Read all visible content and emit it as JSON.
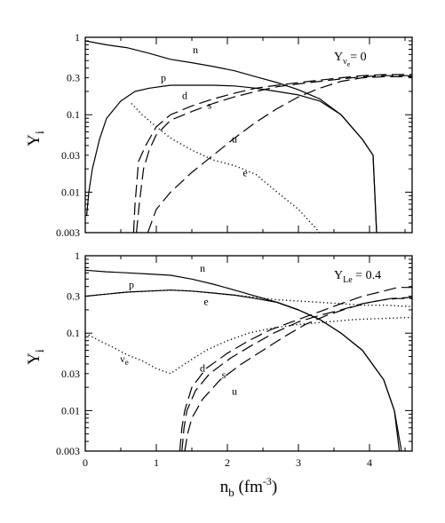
{
  "chart_data": [
    {
      "type": "line",
      "panel": "top",
      "scale": {
        "x": "linear",
        "y": "log"
      },
      "xlim": [
        0,
        4.6
      ],
      "ylim": [
        0.003,
        1
      ],
      "y_ticks": [
        {
          "value": 1,
          "label": "1"
        },
        {
          "value": 0.3,
          "label": "0.3"
        },
        {
          "value": 0.1,
          "label": "0.1"
        },
        {
          "value": 0.03,
          "label": "0.03"
        },
        {
          "value": 0.01,
          "label": "0.01"
        },
        {
          "value": 0.003,
          "label": "0.003"
        }
      ],
      "ylabel": {
        "main": "Y",
        "sub": "i"
      },
      "annotation": {
        "main": "Y",
        "sub": "ν",
        "subsub": "e",
        "rest": "= 0"
      },
      "series": [
        {
          "name": "n",
          "color": "#000000",
          "dash": "solid",
          "x": [
            0,
            0.3,
            0.6,
            0.9,
            1.2,
            1.5,
            1.8,
            2.1,
            2.4,
            2.7,
            3.0,
            3.3,
            3.6,
            3.9,
            4.05,
            4.1
          ],
          "y": [
            0.9,
            0.8,
            0.73,
            0.62,
            0.52,
            0.47,
            0.42,
            0.37,
            0.31,
            0.26,
            0.21,
            0.16,
            0.1,
            0.048,
            0.03,
            0.003
          ]
        },
        {
          "name": "p",
          "color": "#000000",
          "dash": "solid",
          "x": [
            0.02,
            0.05,
            0.1,
            0.2,
            0.3,
            0.5,
            0.7,
            0.9,
            1.2,
            1.5,
            1.8,
            2.1,
            2.4,
            2.7,
            3.0,
            3.3,
            3.6,
            3.9,
            4.05,
            4.1
          ],
          "y": [
            0.005,
            0.01,
            0.02,
            0.048,
            0.09,
            0.15,
            0.2,
            0.22,
            0.24,
            0.24,
            0.24,
            0.235,
            0.22,
            0.2,
            0.18,
            0.15,
            0.1,
            0.048,
            0.03,
            0.003
          ]
        },
        {
          "name": "e",
          "color": "#000000",
          "dash": "dotted",
          "x": [
            0.65,
            0.8,
            1.0,
            1.2,
            1.5,
            1.8,
            2.1,
            2.4,
            2.7,
            3.0,
            3.3
          ],
          "y": [
            0.14,
            0.1,
            0.07,
            0.05,
            0.035,
            0.026,
            0.022,
            0.017,
            0.01,
            0.006,
            0.003
          ]
        },
        {
          "name": "d",
          "color": "#000000",
          "dash": "dashed",
          "x": [
            0.68,
            0.7,
            0.75,
            0.85,
            1.0,
            1.2,
            1.5,
            1.8,
            2.1,
            2.4,
            2.7,
            3.0,
            3.3,
            3.6,
            3.9,
            4.2,
            4.6
          ],
          "y": [
            0.003,
            0.007,
            0.025,
            0.04,
            0.07,
            0.1,
            0.13,
            0.16,
            0.19,
            0.22,
            0.24,
            0.26,
            0.28,
            0.3,
            0.32,
            0.33,
            0.33
          ]
        },
        {
          "name": "s",
          "color": "#000000",
          "dash": "dashed",
          "x": [
            0.72,
            0.76,
            0.82,
            0.9,
            1.0,
            1.2,
            1.5,
            1.8,
            2.1,
            2.4,
            2.7,
            3.0,
            3.3,
            3.6,
            3.9,
            4.2,
            4.6
          ],
          "y": [
            0.003,
            0.007,
            0.02,
            0.035,
            0.055,
            0.085,
            0.11,
            0.14,
            0.17,
            0.2,
            0.23,
            0.25,
            0.27,
            0.29,
            0.31,
            0.32,
            0.32
          ]
        },
        {
          "name": "u",
          "color": "#000000",
          "dash": "dashed",
          "x": [
            0.88,
            1.0,
            1.2,
            1.5,
            1.8,
            2.1,
            2.4,
            2.7,
            3.0,
            3.3,
            3.6,
            3.9,
            4.2,
            4.6
          ],
          "y": [
            0.003,
            0.006,
            0.01,
            0.018,
            0.03,
            0.05,
            0.08,
            0.12,
            0.17,
            0.22,
            0.27,
            0.3,
            0.31,
            0.31
          ]
        }
      ],
      "curve_labels": [
        {
          "text": "n",
          "x": 1.55,
          "y": 0.62
        },
        {
          "text": "p",
          "x": 1.1,
          "y": 0.27
        },
        {
          "text": "d",
          "x": 1.4,
          "y": 0.16
        },
        {
          "text": "s",
          "x": 1.75,
          "y": 0.12
        },
        {
          "text": "u",
          "x": 2.1,
          "y": 0.044
        },
        {
          "text": "e",
          "x": 2.25,
          "y": 0.016
        }
      ]
    },
    {
      "type": "line",
      "panel": "bottom",
      "scale": {
        "x": "linear",
        "y": "log"
      },
      "xlim": [
        0,
        4.6
      ],
      "ylim": [
        0.003,
        1
      ],
      "x_ticks": [
        {
          "value": 0,
          "label": "0"
        },
        {
          "value": 1,
          "label": "1"
        },
        {
          "value": 2,
          "label": "2"
        },
        {
          "value": 3,
          "label": "3"
        },
        {
          "value": 4,
          "label": "4"
        }
      ],
      "y_ticks": [
        {
          "value": 1,
          "label": "1"
        },
        {
          "value": 0.3,
          "label": "0.3"
        },
        {
          "value": 0.1,
          "label": "0.1"
        },
        {
          "value": 0.03,
          "label": "0.03"
        },
        {
          "value": 0.01,
          "label": "0.01"
        },
        {
          "value": 0.003,
          "label": "0.003"
        }
      ],
      "xlabel": {
        "main": "n",
        "sub": "b",
        "rest": " (fm",
        "sup": "-3",
        "close": ")"
      },
      "ylabel": {
        "main": "Y",
        "sub": "i"
      },
      "annotation": {
        "main": "Y",
        "sub": "Le",
        "rest": " = 0.4"
      },
      "series": [
        {
          "name": "n",
          "color": "#000000",
          "dash": "solid",
          "x": [
            0,
            0.3,
            0.6,
            0.9,
            1.2,
            1.5,
            1.8,
            2.1,
            2.4,
            2.7,
            3.0,
            3.3,
            3.6,
            3.9,
            4.2,
            4.35,
            4.45
          ],
          "y": [
            0.65,
            0.62,
            0.6,
            0.58,
            0.56,
            0.5,
            0.43,
            0.36,
            0.3,
            0.25,
            0.2,
            0.15,
            0.1,
            0.06,
            0.025,
            0.01,
            0.003
          ]
        },
        {
          "name": "p",
          "color": "#000000",
          "dash": "solid",
          "x": [
            0,
            0.3,
            0.6,
            0.9,
            1.2,
            1.5,
            1.8,
            2.1,
            2.4,
            2.7,
            3.0,
            3.3,
            3.6,
            3.9,
            4.2,
            4.35,
            4.42
          ],
          "y": [
            0.3,
            0.32,
            0.34,
            0.35,
            0.36,
            0.35,
            0.33,
            0.31,
            0.28,
            0.25,
            0.2,
            0.15,
            0.1,
            0.06,
            0.025,
            0.01,
            0.003
          ]
        },
        {
          "name": "e",
          "color": "#000000",
          "dash": "dotted",
          "x": [
            0,
            0.3,
            0.6,
            0.9,
            1.2,
            1.5,
            1.8,
            2.1,
            2.4,
            2.7,
            3.0,
            3.3,
            3.6,
            3.9,
            4.2,
            4.6
          ],
          "y": [
            0.3,
            0.32,
            0.34,
            0.35,
            0.36,
            0.35,
            0.33,
            0.31,
            0.29,
            0.27,
            0.26,
            0.25,
            0.24,
            0.23,
            0.23,
            0.22
          ]
        },
        {
          "name": "νe",
          "color": "#000000",
          "dash": "dotted",
          "x": [
            0,
            0.2,
            0.4,
            0.6,
            0.8,
            1.0,
            1.2,
            1.4,
            1.7,
            2.0,
            2.3,
            2.6,
            3.0,
            3.4,
            3.8,
            4.2,
            4.6
          ],
          "y": [
            0.1,
            0.08,
            0.065,
            0.052,
            0.044,
            0.035,
            0.03,
            0.04,
            0.06,
            0.08,
            0.1,
            0.115,
            0.13,
            0.14,
            0.15,
            0.155,
            0.16
          ]
        },
        {
          "name": "d",
          "color": "#000000",
          "dash": "dashed",
          "x": [
            1.33,
            1.36,
            1.4,
            1.5,
            1.7,
            2.0,
            2.3,
            2.6,
            3.0,
            3.3,
            3.6,
            3.9,
            4.2,
            4.4,
            4.6
          ],
          "y": [
            0.003,
            0.006,
            0.01,
            0.02,
            0.035,
            0.055,
            0.08,
            0.11,
            0.15,
            0.19,
            0.24,
            0.3,
            0.35,
            0.39,
            0.39
          ]
        },
        {
          "name": "s",
          "color": "#000000",
          "dash": "dashed",
          "x": [
            1.36,
            1.39,
            1.43,
            1.55,
            1.75,
            2.05,
            2.35,
            2.65,
            3.0,
            3.3,
            3.6,
            3.9,
            4.2,
            4.4,
            4.6
          ],
          "y": [
            0.003,
            0.006,
            0.01,
            0.018,
            0.03,
            0.048,
            0.07,
            0.1,
            0.14,
            0.17,
            0.2,
            0.24,
            0.27,
            0.28,
            0.28
          ]
        },
        {
          "name": "u",
          "color": "#000000",
          "dash": "dashed",
          "x": [
            1.4,
            1.44,
            1.5,
            1.65,
            1.9,
            2.2,
            2.5,
            2.8,
            3.1,
            3.4,
            3.7,
            4.0,
            4.3,
            4.6
          ],
          "y": [
            0.003,
            0.005,
            0.008,
            0.014,
            0.025,
            0.04,
            0.06,
            0.09,
            0.13,
            0.17,
            0.21,
            0.25,
            0.28,
            0.29
          ]
        }
      ],
      "curve_labels": [
        {
          "text": "n",
          "x": 1.65,
          "y": 0.62
        },
        {
          "text": "p",
          "x": 0.65,
          "y": 0.38
        },
        {
          "text": "e",
          "x": 1.7,
          "y": 0.23
        },
        {
          "text": "ν",
          "sub": "e",
          "x": 0.55,
          "y": 0.042
        },
        {
          "text": "d",
          "x": 1.65,
          "y": 0.032
        },
        {
          "text": "s",
          "x": 1.95,
          "y": 0.026
        },
        {
          "text": "u",
          "x": 2.1,
          "y": 0.016
        }
      ]
    }
  ]
}
